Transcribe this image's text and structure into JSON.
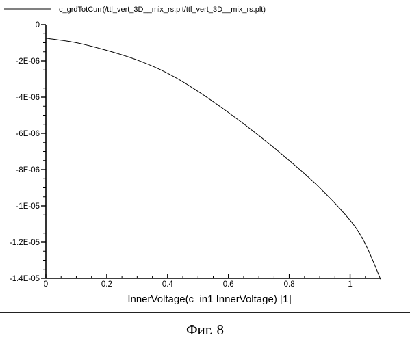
{
  "chart_data": {
    "type": "line",
    "legend": {
      "entries": [
        "c_grdTotCurr(/ttl_vert_3D__mix_rs.plt/ttl_vert_3D__mix_rs.plt)"
      ],
      "placement": "top-left"
    },
    "xlabel": "InnerVoltage(c_in1 InnerVoltage) [1]",
    "ylabel": "",
    "xlim": [
      0,
      1.1
    ],
    "ylim": [
      -1.4e-05,
      0
    ],
    "x_ticks": [
      {
        "value": 0,
        "label": "0"
      },
      {
        "value": 0.2,
        "label": "0.2"
      },
      {
        "value": 0.4,
        "label": "0.4"
      },
      {
        "value": 0.6,
        "label": "0.6"
      },
      {
        "value": 0.8,
        "label": "0.8"
      },
      {
        "value": 1,
        "label": "1"
      }
    ],
    "y_ticks": [
      {
        "value": 0,
        "label": "0"
      },
      {
        "value": -2e-06,
        "label": "-2E-06"
      },
      {
        "value": -4e-06,
        "label": "-4E-06"
      },
      {
        "value": -6e-06,
        "label": "-6E-06"
      },
      {
        "value": -8e-06,
        "label": "-8E-06"
      },
      {
        "value": -1e-05,
        "label": "-1E-05"
      },
      {
        "value": -1.2e-05,
        "label": "-1.2E-05"
      },
      {
        "value": -1.4e-05,
        "label": "-1.4E-05"
      }
    ],
    "grid": false,
    "series": [
      {
        "name": "c_grdTotCurr(/ttl_vert_3D__mix_rs.plt/ttl_vert_3D__mix_rs.plt)",
        "color": "#000000",
        "x": [
          0,
          0.1,
          0.2,
          0.3,
          0.4,
          0.5,
          0.6,
          0.7,
          0.8,
          0.9,
          1.0,
          1.05,
          1.1
        ],
        "y": [
          -7.5e-07,
          -1e-06,
          -1.42e-06,
          -1.95e-06,
          -2.68e-06,
          -3.68e-06,
          -4.85e-06,
          -6.12e-06,
          -7.5e-06,
          -9e-06,
          -1.08e-05,
          -1.21e-05,
          -1.405e-05
        ]
      }
    ]
  },
  "caption": "Фиг. 8"
}
